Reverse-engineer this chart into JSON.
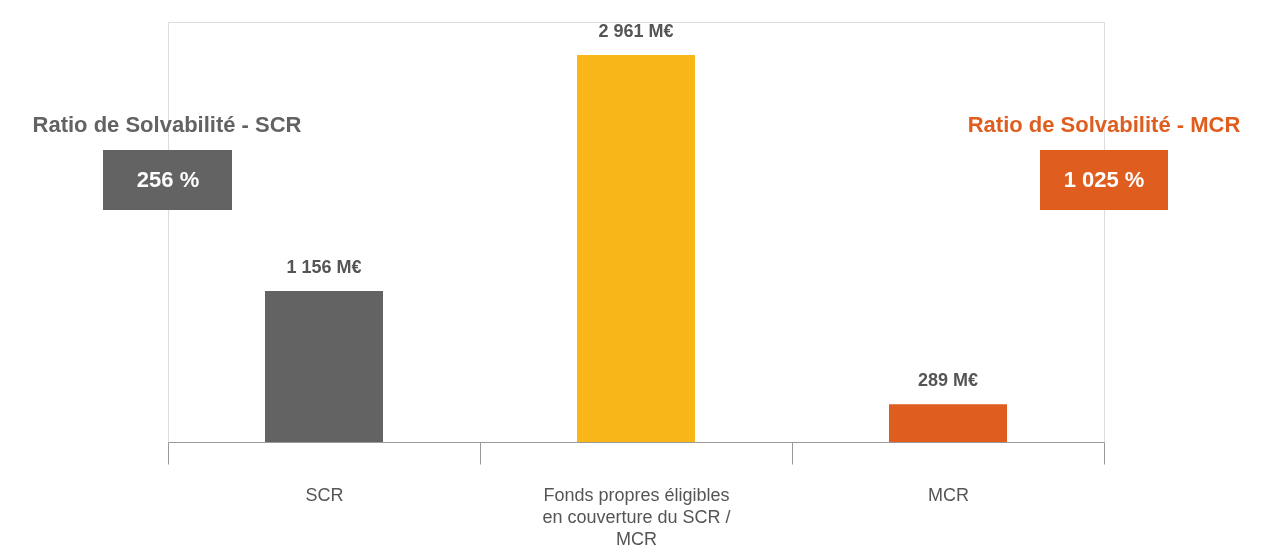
{
  "chart_data": {
    "type": "bar",
    "categories": [
      "SCR",
      "Fonds propres éligibles en couverture du SCR / MCR",
      "MCR"
    ],
    "values": [
      1156,
      2961,
      289
    ],
    "colors": [
      "#636363",
      "#f9b618",
      "#df5d1e"
    ],
    "value_labels": [
      "1 156 M€",
      "2 961 M€",
      "289 M€"
    ],
    "annotations": [
      "Ratio de Solvabilité - SCR",
      "256 %",
      "Ratio de Solvabilité - MCR",
      "1 025 %"
    ],
    "grid": false,
    "tick_labels": "x"
  }
}
